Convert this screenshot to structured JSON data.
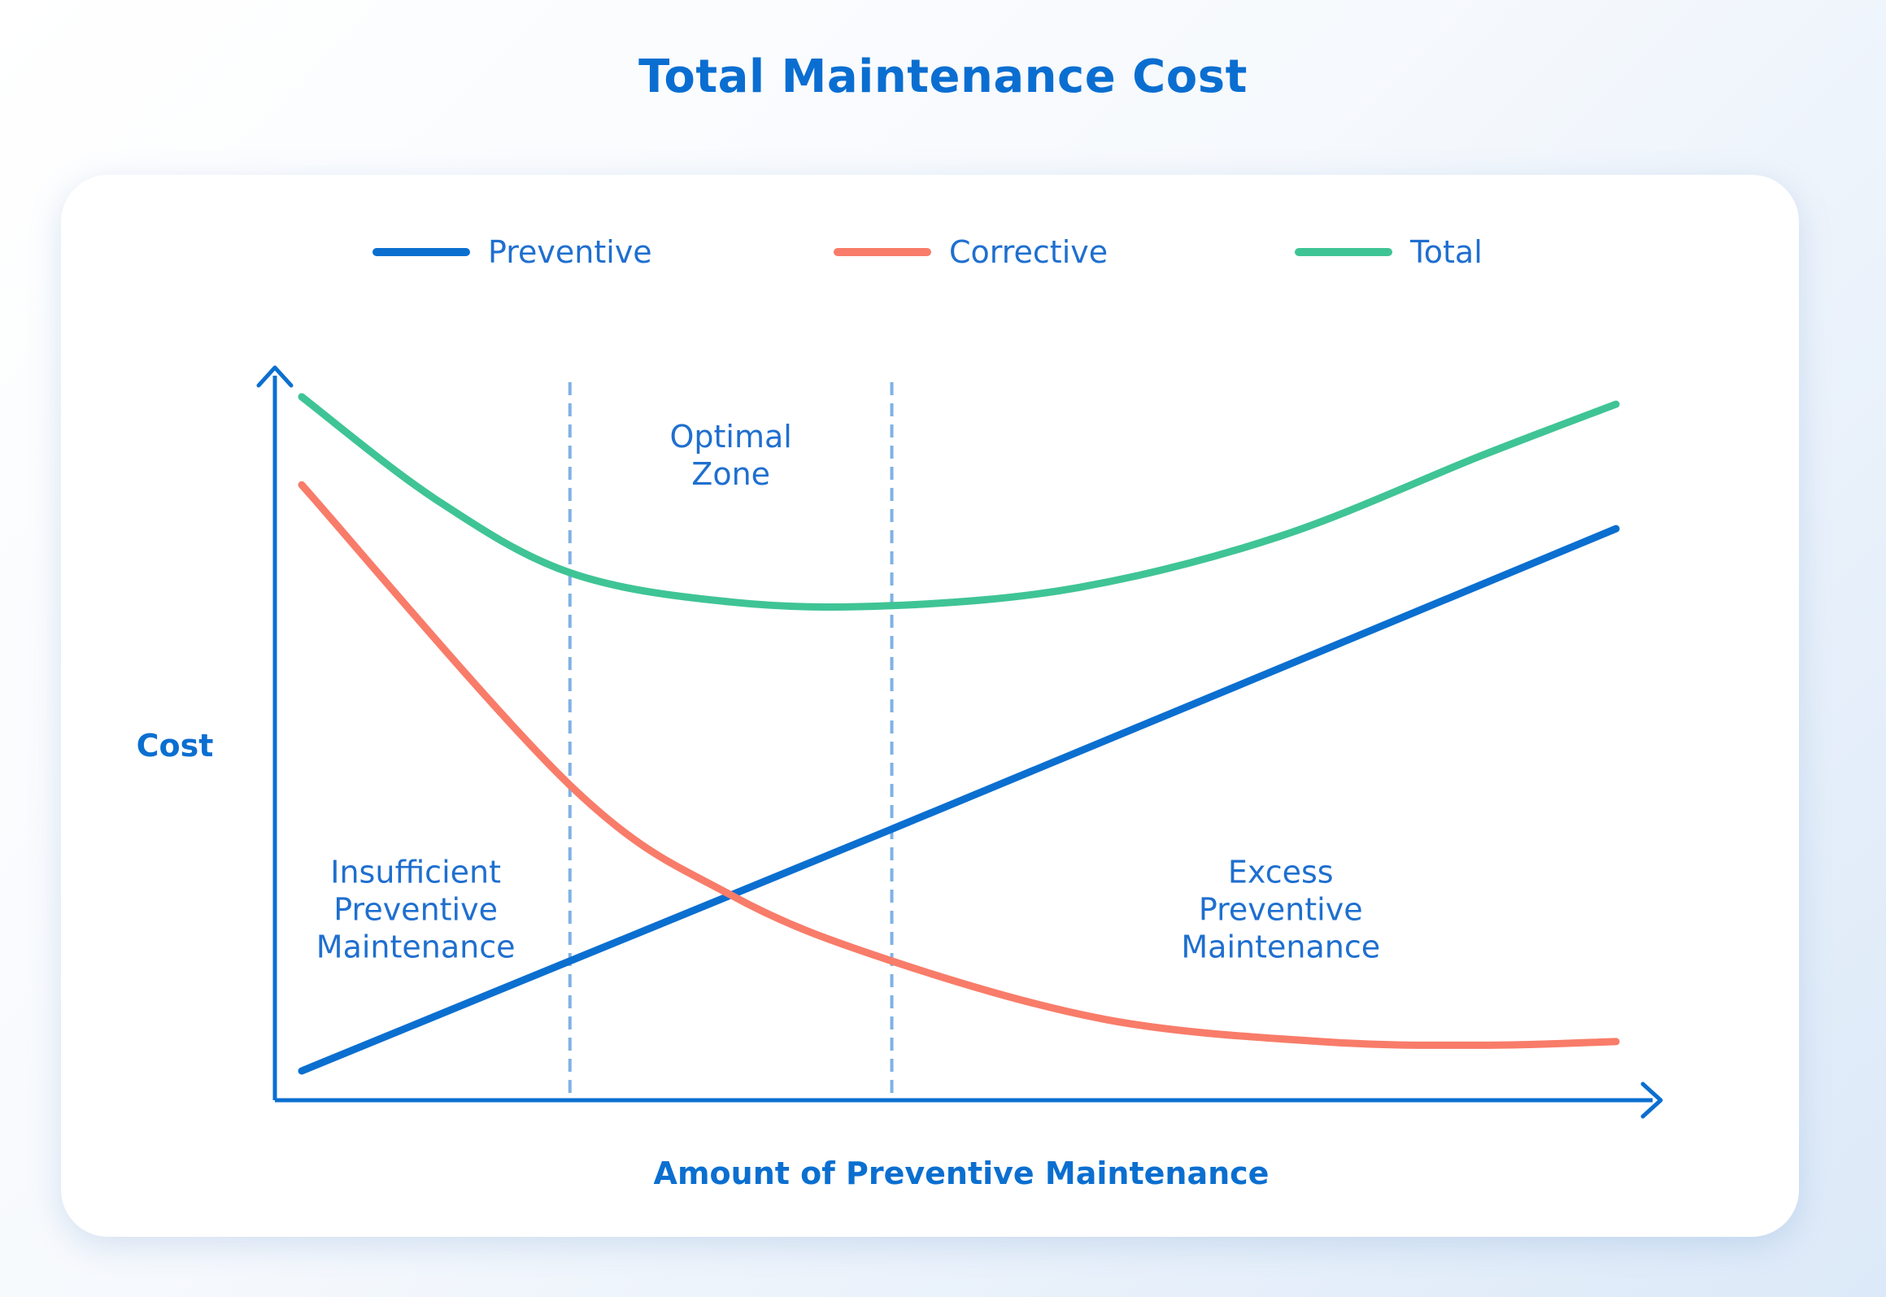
{
  "colors": {
    "preventive": "#0b6fd0",
    "corrective": "#f87c69",
    "total": "#3fc496",
    "axis": "#0b6fd0",
    "text": "#1f6fcf",
    "divider": "#7fb2e5"
  },
  "chart_data": {
    "type": "line",
    "title": "Total Maintenance Cost",
    "xlabel": "Amount of Preventive Maintenance",
    "ylabel": "Cost",
    "xlim": [
      0,
      100
    ],
    "ylim": [
      0,
      100
    ],
    "grid": false,
    "legend_position": "top",
    "axes_style": "arrows-no-ticks",
    "series": [
      {
        "name": "Preventive",
        "color_key": "preventive",
        "x": [
          2,
          22,
          46,
          100
        ],
        "y": [
          4,
          19,
          37,
          78
        ]
      },
      {
        "name": "Corrective",
        "color_key": "corrective",
        "x": [
          2,
          22,
          34,
          46,
          62,
          78,
          90,
          100
        ],
        "y": [
          84,
          43,
          28,
          19,
          11,
          8,
          7.5,
          8
        ]
      },
      {
        "name": "Total",
        "color_key": "total",
        "x": [
          2,
          12,
          22,
          34,
          46,
          60,
          75,
          90,
          100
        ],
        "y": [
          96,
          82,
          72,
          68,
          67.5,
          70,
          77,
          88,
          95
        ]
      }
    ],
    "dividers": [
      22,
      46
    ],
    "regions": [
      {
        "label": "Insufficient\nPreventive\nMaintenance",
        "x": 10.5,
        "y": 26
      },
      {
        "label": "Optimal\nZone",
        "x": 34,
        "y": 88
      },
      {
        "label": "Excess\nPreventive\nMaintenance",
        "x": 75,
        "y": 26
      }
    ]
  }
}
